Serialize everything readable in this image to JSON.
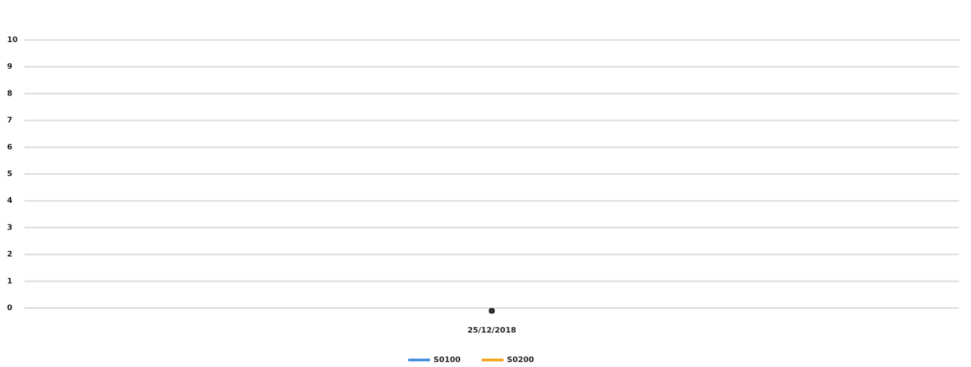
{
  "chart_data": {
    "type": "bar",
    "categories": [
      "25/12/2018"
    ],
    "series": [
      {
        "name": "S0100",
        "color": "#4a90e2",
        "values": [
          0
        ]
      },
      {
        "name": "S0200",
        "color": "#f5a623",
        "values": [
          0
        ]
      }
    ],
    "ylim": [
      0,
      10
    ],
    "yticks": [
      0,
      1,
      2,
      3,
      4,
      5,
      6,
      7,
      8,
      9,
      10
    ],
    "grid": true,
    "legend": "bottom"
  }
}
